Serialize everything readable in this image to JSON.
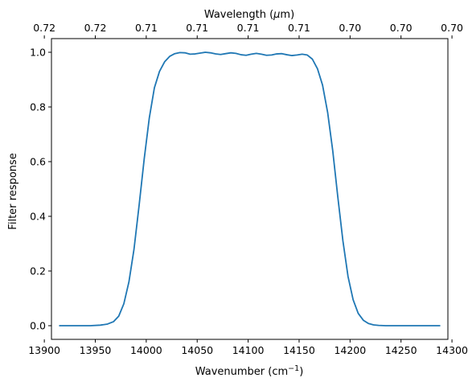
{
  "chart_data": {
    "type": "line",
    "title": "",
    "xlabel": "Wavenumber (cm",
    "xlabel_sup": "−1",
    "xlabel_close": ")",
    "x2label": "Wavelength (",
    "x2label_mu": "μ",
    "x2label_close": "m)",
    "ylabel": "Filter response",
    "xlim": [
      13907,
      14296
    ],
    "ylim": [
      -0.05,
      1.05
    ],
    "xticks": [
      13900,
      13950,
      14000,
      14050,
      14100,
      14150,
      14200,
      14250,
      14300
    ],
    "xtick_labels": [
      "13900",
      "13950",
      "14000",
      "14050",
      "14100",
      "14150",
      "14200",
      "14250",
      "14300"
    ],
    "yticks": [
      0.0,
      0.2,
      0.4,
      0.6,
      0.8,
      1.0
    ],
    "ytick_labels": [
      "0.0",
      "0.2",
      "0.4",
      "0.6",
      "0.8",
      "1.0"
    ],
    "x2ticks": [
      13900,
      13950,
      14000,
      14050,
      14100,
      14150,
      14200,
      14250,
      14300
    ],
    "x2tick_labels": [
      "0.72",
      "0.72",
      "0.71",
      "0.71",
      "0.71",
      "0.71",
      "0.70",
      "0.70",
      "0.70"
    ],
    "grid": false,
    "colors": {
      "line": "#1f77b4",
      "axes": "#000000"
    },
    "series": [
      {
        "x": [
          13915,
          13930,
          13945,
          13955,
          13962,
          13968,
          13973,
          13978,
          13983,
          13988,
          13993,
          13998,
          14003,
          14008,
          14013,
          14018,
          14023,
          14028,
          14033,
          14038,
          14043,
          14048,
          14053,
          14058,
          14063,
          14068,
          14073,
          14078,
          14083,
          14088,
          14093,
          14098,
          14103,
          14108,
          14113,
          14118,
          14123,
          14128,
          14133,
          14138,
          14143,
          14148,
          14153,
          14158,
          14163,
          14168,
          14173,
          14178,
          14183,
          14188,
          14193,
          14198,
          14203,
          14208,
          14213,
          14218,
          14223,
          14228,
          14235,
          14245,
          14260,
          14275,
          14288
        ],
        "y": [
          0.0,
          0.0,
          0.0,
          0.002,
          0.006,
          0.015,
          0.035,
          0.08,
          0.16,
          0.28,
          0.44,
          0.61,
          0.76,
          0.87,
          0.93,
          0.965,
          0.985,
          0.995,
          0.999,
          0.998,
          0.993,
          0.994,
          0.997,
          1.0,
          0.998,
          0.994,
          0.992,
          0.995,
          0.998,
          0.996,
          0.991,
          0.989,
          0.993,
          0.996,
          0.993,
          0.989,
          0.99,
          0.994,
          0.995,
          0.991,
          0.988,
          0.99,
          0.993,
          0.99,
          0.975,
          0.94,
          0.88,
          0.78,
          0.64,
          0.47,
          0.31,
          0.18,
          0.095,
          0.045,
          0.02,
          0.008,
          0.003,
          0.001,
          0.0,
          0.0,
          0.0,
          0.0,
          0.0
        ]
      }
    ]
  }
}
